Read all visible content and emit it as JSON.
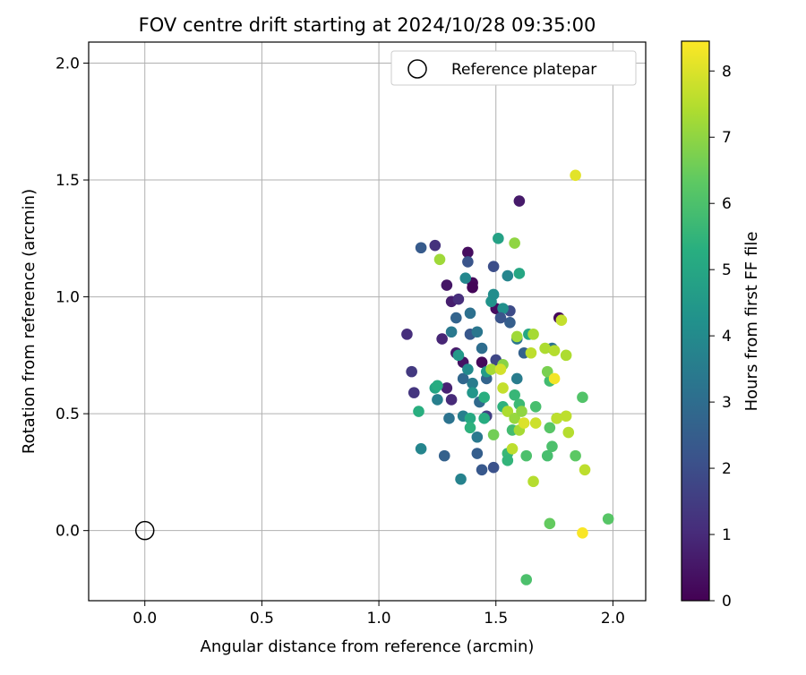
{
  "chart_data": {
    "type": "scatter",
    "title": "FOV centre drift starting at 2024/10/28 09:35:00",
    "xlabel": "Angular distance from reference (arcmin)",
    "ylabel": "Rotation from reference (arcmin)",
    "xlim": [
      -0.24,
      2.14
    ],
    "ylim": [
      -0.3,
      2.09
    ],
    "xticks": [
      0.0,
      0.5,
      1.0,
      1.5,
      2.0
    ],
    "xtick_labels": [
      "0.0",
      "0.5",
      "1.0",
      "1.5",
      "2.0"
    ],
    "yticks": [
      0.0,
      0.5,
      1.0,
      1.5,
      2.0
    ],
    "ytick_labels": [
      "0.0",
      "0.5",
      "1.0",
      "1.5",
      "2.0"
    ],
    "grid": true,
    "legend": {
      "placement": "top-right",
      "entries": [
        {
          "label": "Reference platepar",
          "marker": "open-circle"
        }
      ]
    },
    "reference_point": {
      "x": 0.0,
      "y": 0.0
    },
    "colorbar": {
      "label": "Hours from first FF file",
      "colormap": "viridis",
      "range": [
        0,
        8.45
      ],
      "ticks": [
        0,
        1,
        2,
        3,
        4,
        5,
        6,
        7,
        8
      ],
      "tick_labels": [
        "0",
        "1",
        "2",
        "3",
        "4",
        "5",
        "6",
        "7",
        "8"
      ]
    },
    "series": [
      {
        "points": [
          [
            1.6,
            1.41,
            0.6
          ],
          [
            1.38,
            1.19,
            0.3
          ],
          [
            1.4,
            1.06,
            0.2
          ],
          [
            1.4,
            1.04,
            0.1
          ],
          [
            1.29,
            1.05,
            0.5
          ],
          [
            1.31,
            0.98,
            0.7
          ],
          [
            1.34,
            0.99,
            1.1
          ],
          [
            1.27,
            0.82,
            0.9
          ],
          [
            1.24,
            1.22,
            1.2
          ],
          [
            1.12,
            0.84,
            1.1
          ],
          [
            1.14,
            0.68,
            1.4
          ],
          [
            1.15,
            0.59,
            1.3
          ],
          [
            1.29,
            0.61,
            0.8
          ],
          [
            1.33,
            0.76,
            0.6
          ],
          [
            1.31,
            0.56,
            1.0
          ],
          [
            1.36,
            0.72,
            0.4
          ],
          [
            1.44,
            0.72,
            0.2
          ],
          [
            1.5,
            0.95,
            0.3
          ],
          [
            1.77,
            0.91,
            0.2
          ],
          [
            1.46,
            0.49,
            1.6
          ],
          [
            1.49,
            0.27,
            2.1
          ],
          [
            1.44,
            0.26,
            2.3
          ],
          [
            1.42,
            0.33,
            2.5
          ],
          [
            1.28,
            0.32,
            2.6
          ],
          [
            1.18,
            1.21,
            2.4
          ],
          [
            1.38,
            1.15,
            2.2
          ],
          [
            1.49,
            1.13,
            2.0
          ],
          [
            1.56,
            0.94,
            1.9
          ],
          [
            1.39,
            0.84,
            2.3
          ],
          [
            1.33,
            0.91,
            2.7
          ],
          [
            1.31,
            0.85,
            3.4
          ],
          [
            1.42,
            0.85,
            3.3
          ],
          [
            1.39,
            0.93,
            3.1
          ],
          [
            1.44,
            0.78,
            3.0
          ],
          [
            1.5,
            0.73,
            1.8
          ],
          [
            1.46,
            0.65,
            2.7
          ],
          [
            1.4,
            0.63,
            3.5
          ],
          [
            1.36,
            0.65,
            2.8
          ],
          [
            1.43,
            0.55,
            2.9
          ],
          [
            1.3,
            0.48,
            3.2
          ],
          [
            1.36,
            0.49,
            3.6
          ],
          [
            1.42,
            0.4,
            3.4
          ],
          [
            1.25,
            0.56,
            3.6
          ],
          [
            1.18,
            0.35,
            3.8
          ],
          [
            1.35,
            0.22,
            3.7
          ],
          [
            1.37,
            1.08,
            3.9
          ],
          [
            1.53,
            0.95,
            4.2
          ],
          [
            1.55,
            1.09,
            3.8
          ],
          [
            1.56,
            0.89,
            2.5
          ],
          [
            1.52,
            0.91,
            2.2
          ],
          [
            1.48,
            0.98,
            4.3
          ],
          [
            1.49,
            1.01,
            4.1
          ],
          [
            1.34,
            0.75,
            4.5
          ],
          [
            1.38,
            0.69,
            4.0
          ],
          [
            1.4,
            0.59,
            4.4
          ],
          [
            1.46,
            0.68,
            4.6
          ],
          [
            1.59,
            0.65,
            3.5
          ],
          [
            1.59,
            0.82,
            3.3
          ],
          [
            1.62,
            0.76,
            2.6
          ],
          [
            1.64,
            0.84,
            5.0
          ],
          [
            1.74,
            0.78,
            3.2
          ],
          [
            1.6,
            1.1,
            5.0
          ],
          [
            1.51,
            1.25,
            4.8
          ],
          [
            1.24,
            0.61,
            4.9
          ],
          [
            1.25,
            0.62,
            5.2
          ],
          [
            1.17,
            0.51,
            5.3
          ],
          [
            1.39,
            0.48,
            5.1
          ],
          [
            1.39,
            0.44,
            5.4
          ],
          [
            1.45,
            0.57,
            5.3
          ],
          [
            1.45,
            0.48,
            5.2
          ],
          [
            1.53,
            0.53,
            5.4
          ],
          [
            1.55,
            0.33,
            5.6
          ],
          [
            1.55,
            0.3,
            5.5
          ],
          [
            1.58,
            0.58,
            5.6
          ],
          [
            1.6,
            0.54,
            5.7
          ],
          [
            1.57,
            0.43,
            5.8
          ],
          [
            1.63,
            0.32,
            6.0
          ],
          [
            1.67,
            0.53,
            5.9
          ],
          [
            1.73,
            0.64,
            5.8
          ],
          [
            1.74,
            0.36,
            6.0
          ],
          [
            1.76,
            0.48,
            6.1
          ],
          [
            1.72,
            0.32,
            5.9
          ],
          [
            1.73,
            0.44,
            6.2
          ],
          [
            1.84,
            0.32,
            6.3
          ],
          [
            1.87,
            0.57,
            6.1
          ],
          [
            1.98,
            0.05,
            6.2
          ],
          [
            1.73,
            0.03,
            6.4
          ],
          [
            1.63,
            -0.21,
            6.0
          ],
          [
            1.49,
            0.41,
            6.6
          ],
          [
            1.53,
            0.71,
            6.9
          ],
          [
            1.53,
            0.61,
            7.7
          ],
          [
            1.55,
            0.51,
            7.4
          ],
          [
            1.58,
            0.48,
            7.1
          ],
          [
            1.59,
            0.83,
            7.2
          ],
          [
            1.6,
            0.43,
            7.3
          ],
          [
            1.61,
            0.51,
            7.0
          ],
          [
            1.65,
            0.76,
            7.6
          ],
          [
            1.66,
            0.21,
            7.5
          ],
          [
            1.66,
            0.84,
            7.3
          ],
          [
            1.67,
            0.46,
            7.8
          ],
          [
            1.71,
            0.78,
            7.4
          ],
          [
            1.72,
            0.68,
            6.7
          ],
          [
            1.75,
            0.77,
            7.5
          ],
          [
            1.76,
            0.48,
            7.6
          ],
          [
            1.78,
            0.9,
            7.7
          ],
          [
            1.8,
            0.49,
            7.6
          ],
          [
            1.8,
            0.75,
            7.4
          ],
          [
            1.81,
            0.42,
            7.5
          ],
          [
            1.88,
            0.26,
            7.6
          ],
          [
            1.48,
            0.69,
            7.3
          ],
          [
            1.26,
            1.16,
            7.2
          ],
          [
            1.58,
            1.23,
            7.0
          ],
          [
            1.57,
            0.35,
            7.6
          ],
          [
            1.75,
            0.65,
            8.3
          ],
          [
            1.84,
            1.52,
            8.1
          ],
          [
            1.87,
            -0.01,
            8.4
          ],
          [
            1.52,
            0.69,
            7.9
          ],
          [
            1.62,
            0.46,
            8.0
          ]
        ]
      }
    ]
  }
}
